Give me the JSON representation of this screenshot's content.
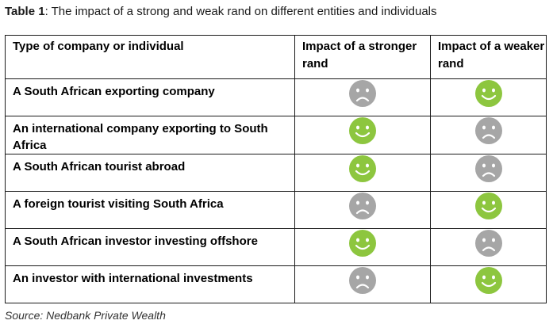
{
  "title": {
    "label": "Table 1",
    "text": ": The impact of a strong and weak rand on different entities and individuals"
  },
  "table": {
    "headers": [
      "Type of company or individual",
      "Impact of a stronger rand",
      "Impact of a weaker rand"
    ],
    "rows": [
      {
        "entity": "A South African exporting company",
        "stronger": "sad",
        "weaker": "happy"
      },
      {
        "entity": "An international company exporting to South Africa",
        "stronger": "happy",
        "weaker": "sad"
      },
      {
        "entity": "A South African tourist abroad",
        "stronger": "happy",
        "weaker": "sad"
      },
      {
        "entity": "A foreign tourist visiting South Africa",
        "stronger": "sad",
        "weaker": "happy"
      },
      {
        "entity": "A South African investor investing offshore",
        "stronger": "happy",
        "weaker": "sad"
      },
      {
        "entity": "An investor with international investments",
        "stronger": "sad",
        "weaker": "happy"
      }
    ]
  },
  "colors": {
    "happy": "#8dc63f",
    "sad": "#a6a6a6",
    "border": "#1a1a1a"
  },
  "source": "Source: Nedbank Private Wealth"
}
